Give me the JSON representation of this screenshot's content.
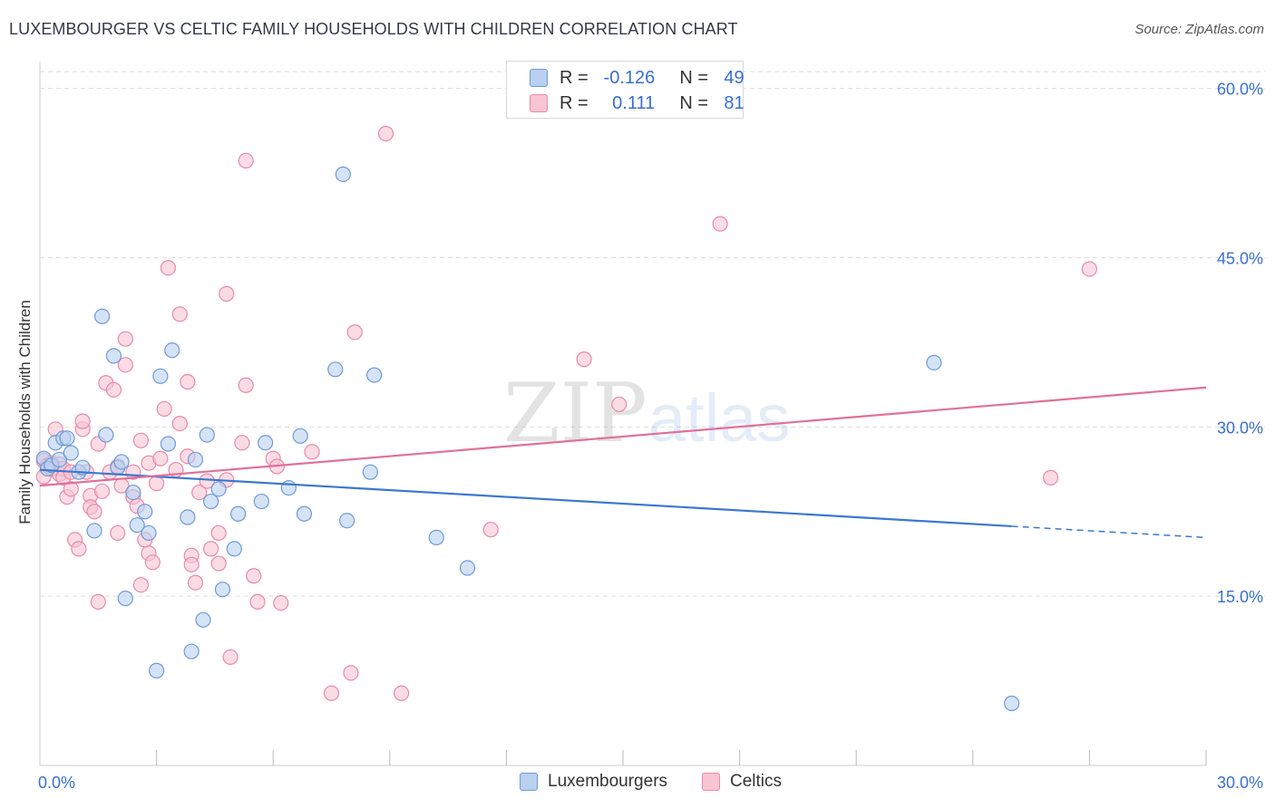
{
  "header": {
    "title": "LUXEMBOURGER VS CELTIC FAMILY HOUSEHOLDS WITH CHILDREN CORRELATION CHART",
    "source": "Source: ZipAtlas.com"
  },
  "legend_top": {
    "rows": [
      {
        "r_label": "R =",
        "r_value": "-0.126",
        "n_label": "N =",
        "n_value": "49"
      },
      {
        "r_label": "R =",
        "r_value": "0.111",
        "n_label": "N =",
        "n_value": "81"
      }
    ]
  },
  "legend_bottom": {
    "items": [
      "Luxembourgers",
      "Celtics"
    ]
  },
  "watermark": {
    "zip": "ZIP",
    "atlas": "atlas"
  },
  "colors": {
    "blue_fill": "#b9d0f0",
    "blue_stroke": "#6f9ad8",
    "blue_line": "#3a78d0",
    "pink_fill": "#f9c4d4",
    "pink_stroke": "#e98aa8",
    "pink_line": "#e0709a",
    "tick_label": "#3a6fd0",
    "grid": "#dddddd"
  },
  "chart_data": {
    "type": "scatter",
    "title": "LUXEMBOURGER VS CELTIC FAMILY HOUSEHOLDS WITH CHILDREN CORRELATION CHART",
    "xlabel": "",
    "ylabel": "Family Households with Children",
    "xlim": [
      0,
      30
    ],
    "ylim": [
      0,
      61.5
    ],
    "x_tick_labels": [
      {
        "value": 0,
        "label": "0.0%"
      },
      {
        "value": 30,
        "label": "30.0%"
      }
    ],
    "y_tick_labels": [
      {
        "value": 15,
        "label": "15.0%"
      },
      {
        "value": 30,
        "label": "30.0%"
      },
      {
        "value": 45,
        "label": "45.0%"
      },
      {
        "value": 60,
        "label": "60.0%"
      }
    ],
    "x_minor_ticks": [
      3,
      6,
      9,
      12,
      15,
      18,
      21,
      24,
      27,
      30
    ],
    "series": [
      {
        "name": "Luxembourgers",
        "r": -0.126,
        "n": 49,
        "trend": {
          "x0": 0,
          "y0": 26.2,
          "x1": 25.0,
          "y1": 21.2,
          "dash_to_x": 30,
          "dash_to_y": 20.2
        },
        "points": [
          [
            0.1,
            27.2
          ],
          [
            0.2,
            26.3
          ],
          [
            0.3,
            26.6
          ],
          [
            0.4,
            28.6
          ],
          [
            0.5,
            27.1
          ],
          [
            0.6,
            29.0
          ],
          [
            0.7,
            29.0
          ],
          [
            0.8,
            27.7
          ],
          [
            1.0,
            26.0
          ],
          [
            1.1,
            26.4
          ],
          [
            1.4,
            20.8
          ],
          [
            1.6,
            39.8
          ],
          [
            1.7,
            29.3
          ],
          [
            1.9,
            36.3
          ],
          [
            2.0,
            26.4
          ],
          [
            2.1,
            26.9
          ],
          [
            2.2,
            14.8
          ],
          [
            2.4,
            24.2
          ],
          [
            2.5,
            21.3
          ],
          [
            2.7,
            22.5
          ],
          [
            2.8,
            20.6
          ],
          [
            3.0,
            8.4
          ],
          [
            3.1,
            34.5
          ],
          [
            3.3,
            28.5
          ],
          [
            3.4,
            36.8
          ],
          [
            3.8,
            22.0
          ],
          [
            3.9,
            10.1
          ],
          [
            4.0,
            27.1
          ],
          [
            4.2,
            12.9
          ],
          [
            4.3,
            29.3
          ],
          [
            4.4,
            23.4
          ],
          [
            4.6,
            24.5
          ],
          [
            4.7,
            15.6
          ],
          [
            5.0,
            19.2
          ],
          [
            5.1,
            22.3
          ],
          [
            5.7,
            23.4
          ],
          [
            5.8,
            28.6
          ],
          [
            6.4,
            24.6
          ],
          [
            6.7,
            29.2
          ],
          [
            6.8,
            22.3
          ],
          [
            7.6,
            35.1
          ],
          [
            7.8,
            52.4
          ],
          [
            7.9,
            21.7
          ],
          [
            8.5,
            26.0
          ],
          [
            8.6,
            34.6
          ],
          [
            10.2,
            20.2
          ],
          [
            11.0,
            17.5
          ],
          [
            23.0,
            35.7
          ],
          [
            25.0,
            5.5
          ]
        ]
      },
      {
        "name": "Celtics",
        "r": 0.111,
        "n": 81,
        "trend": {
          "x0": 0,
          "y0": 24.8,
          "x1": 30,
          "y1": 33.5
        },
        "points": [
          [
            0.1,
            25.6
          ],
          [
            0.1,
            27.0
          ],
          [
            0.2,
            26.6
          ],
          [
            0.3,
            26.8
          ],
          [
            0.3,
            26.3
          ],
          [
            0.4,
            29.8
          ],
          [
            0.5,
            25.8
          ],
          [
            0.5,
            26.7
          ],
          [
            0.6,
            26.3
          ],
          [
            0.6,
            25.5
          ],
          [
            0.7,
            23.8
          ],
          [
            0.8,
            24.5
          ],
          [
            0.8,
            26.0
          ],
          [
            0.9,
            20.0
          ],
          [
            1.0,
            19.2
          ],
          [
            1.1,
            29.8
          ],
          [
            1.1,
            30.5
          ],
          [
            1.2,
            26.0
          ],
          [
            1.3,
            23.9
          ],
          [
            1.3,
            22.9
          ],
          [
            1.4,
            22.5
          ],
          [
            1.5,
            28.5
          ],
          [
            1.5,
            14.5
          ],
          [
            1.6,
            24.3
          ],
          [
            1.7,
            33.9
          ],
          [
            1.8,
            26.0
          ],
          [
            1.9,
            33.3
          ],
          [
            2.0,
            26.5
          ],
          [
            2.0,
            20.6
          ],
          [
            2.1,
            24.8
          ],
          [
            2.2,
            35.5
          ],
          [
            2.2,
            37.8
          ],
          [
            2.4,
            26.0
          ],
          [
            2.4,
            23.8
          ],
          [
            2.5,
            23.0
          ],
          [
            2.6,
            28.8
          ],
          [
            2.6,
            16.0
          ],
          [
            2.7,
            20.0
          ],
          [
            2.8,
            18.8
          ],
          [
            2.8,
            26.8
          ],
          [
            2.9,
            18.0
          ],
          [
            3.0,
            25.0
          ],
          [
            3.1,
            27.2
          ],
          [
            3.2,
            31.6
          ],
          [
            3.3,
            44.1
          ],
          [
            3.5,
            26.2
          ],
          [
            3.6,
            30.3
          ],
          [
            3.6,
            40.0
          ],
          [
            3.8,
            34.0
          ],
          [
            3.8,
            27.4
          ],
          [
            3.9,
            18.6
          ],
          [
            3.9,
            17.8
          ],
          [
            4.0,
            16.2
          ],
          [
            4.1,
            24.2
          ],
          [
            4.3,
            25.2
          ],
          [
            4.4,
            19.2
          ],
          [
            4.6,
            20.6
          ],
          [
            4.6,
            17.9
          ],
          [
            4.8,
            41.8
          ],
          [
            4.8,
            25.3
          ],
          [
            4.9,
            9.6
          ],
          [
            5.2,
            28.6
          ],
          [
            5.3,
            33.7
          ],
          [
            5.3,
            53.6
          ],
          [
            5.5,
            16.8
          ],
          [
            5.6,
            14.5
          ],
          [
            6.0,
            27.2
          ],
          [
            6.1,
            26.5
          ],
          [
            6.2,
            14.4
          ],
          [
            7.0,
            27.8
          ],
          [
            7.5,
            6.4
          ],
          [
            8.0,
            8.2
          ],
          [
            8.1,
            38.4
          ],
          [
            8.9,
            56.0
          ],
          [
            9.3,
            6.4
          ],
          [
            11.6,
            20.9
          ],
          [
            14.0,
            36.0
          ],
          [
            14.9,
            32.0
          ],
          [
            17.5,
            48.0
          ],
          [
            26.0,
            25.5
          ],
          [
            27.0,
            44.0
          ]
        ]
      }
    ]
  }
}
